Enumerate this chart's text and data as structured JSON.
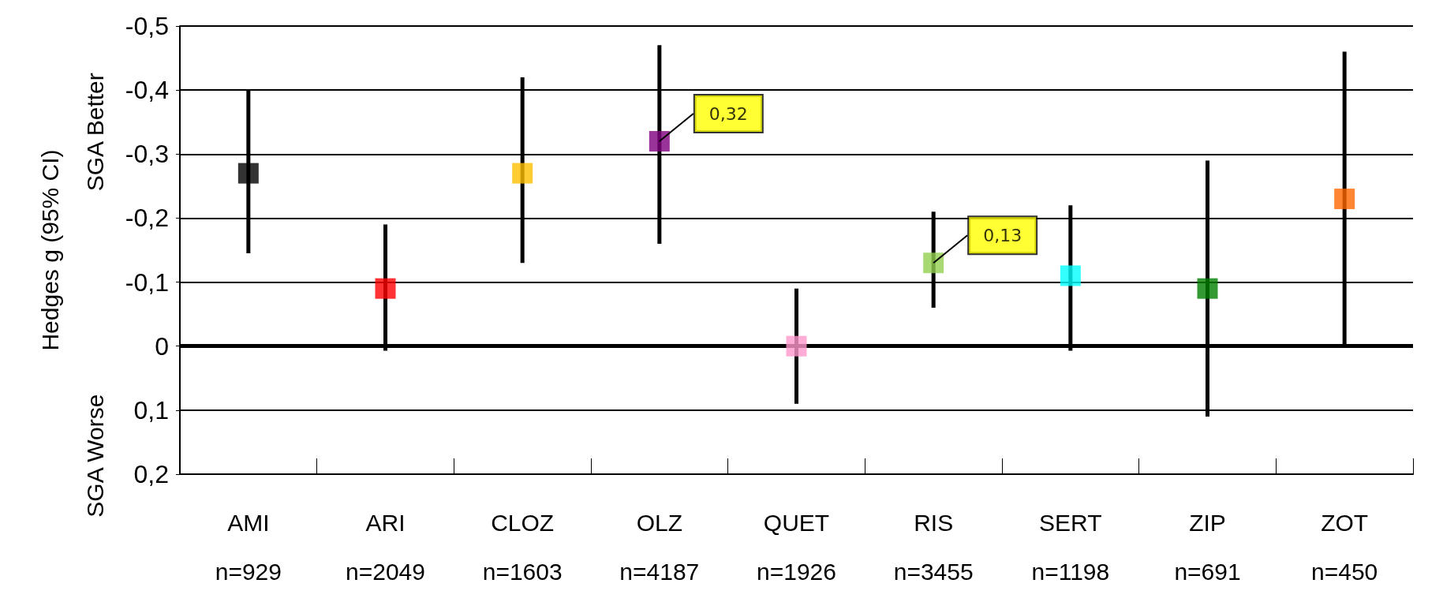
{
  "chart_data": {
    "type": "scatter",
    "ylabel": "Hedges g (95% CI)",
    "categories": [
      "AMI\nn=929",
      "ARI\nn=2049",
      "CLOZ\nn=1603",
      "OLZ\nn=4187",
      "QUET\nn=1926",
      "RIS\nn=3455",
      "SERT\nn=1198",
      "ZIP\nn=691",
      "ZOT\nn=450"
    ],
    "values": [
      -0.27,
      -0.09,
      -0.27,
      -0.32,
      0.0,
      -0.13,
      -0.11,
      -0.09,
      -0.23
    ],
    "colors": [
      "#000000",
      "#ff0000",
      "#ffc000",
      "#7f007f",
      "#ff99cc",
      "#92d050",
      "#00ffff",
      "#008000",
      "#ff6600"
    ],
    "errors": [
      [
        -0.4,
        -0.145
      ],
      [
        -0.19,
        0.007
      ],
      [
        -0.42,
        -0.13
      ],
      [
        -0.47,
        -0.16
      ],
      [
        -0.09,
        0.09
      ],
      [
        -0.21,
        -0.06
      ],
      [
        -0.22,
        0.007
      ],
      [
        -0.29,
        0.11
      ],
      [
        -0.46,
        0.0
      ]
    ],
    "ylim": [
      0.2,
      -0.5
    ],
    "yticks": [
      {
        "value": -0.5,
        "label": "-0,5"
      },
      {
        "value": -0.4,
        "label": "-0,4"
      },
      {
        "value": -0.3,
        "label": "-0,3"
      },
      {
        "value": -0.2,
        "label": "-0,2"
      },
      {
        "value": -0.1,
        "label": "-0,1"
      },
      0,
      {
        "value": 0.1,
        "label": "0,1"
      },
      {
        "value": 0.2,
        "label": "0,2"
      }
    ],
    "grid": "y",
    "marker": "square",
    "ref_lines": [
      {
        "axis": "y",
        "value": 0,
        "label": null,
        "color": "#000000"
      }
    ],
    "annotations": [
      "SGA Better",
      "SGA Worse",
      {
        "text": "0,32",
        "x": "OLZ\nn=4187",
        "y": -0.32
      },
      {
        "text": "0,13",
        "x": "RIS\nn=3455",
        "y": -0.13
      }
    ]
  }
}
